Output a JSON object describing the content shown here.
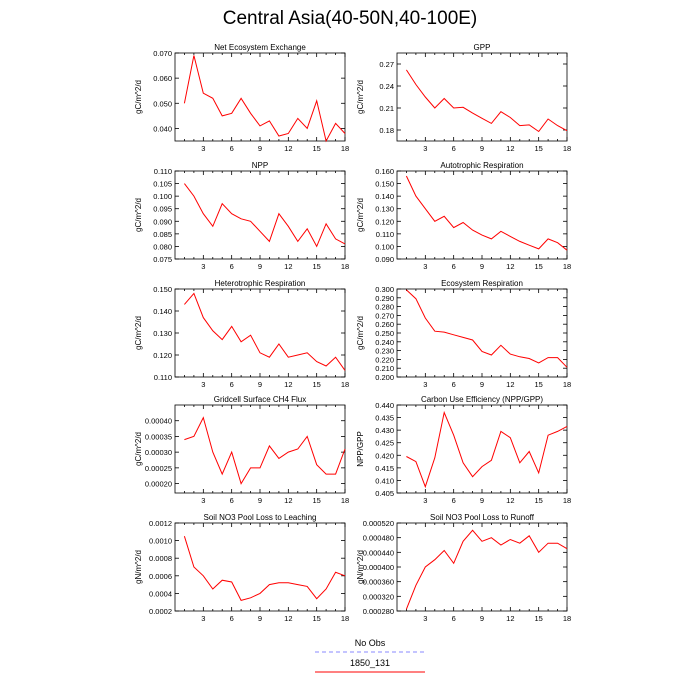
{
  "title": "Central Asia(40-50N,40-100E)",
  "legend": {
    "no_obs": "No Obs",
    "run": "1850_131",
    "no_obs_color": "#8a8aff",
    "run_color": "#ff0000"
  },
  "chart_data": [
    {
      "type": "line",
      "title": "Net Ecosystem Exchange",
      "ylabel": "gC/m^2/d",
      "xlim": [
        0,
        18
      ],
      "ylim": [
        0.035,
        0.07
      ],
      "yticks": [
        "0.040",
        "0.050",
        "0.060",
        "0.070"
      ],
      "ytick_values": [
        0.04,
        0.05,
        0.06,
        0.07
      ],
      "xticks": [
        "3",
        "6",
        "9",
        "12",
        "15",
        "18"
      ],
      "series": [
        {
          "x": [
            1,
            2,
            3,
            4,
            5,
            6,
            7,
            8,
            9,
            10,
            11,
            12,
            13,
            14,
            15,
            16,
            17,
            18
          ],
          "values": [
            0.05,
            0.069,
            0.054,
            0.052,
            0.045,
            0.046,
            0.052,
            0.046,
            0.041,
            0.043,
            0.037,
            0.038,
            0.044,
            0.04,
            0.051,
            0.035,
            0.042,
            0.038
          ]
        }
      ]
    },
    {
      "type": "line",
      "title": "GPP",
      "ylabel": "gC/m^2/d",
      "xlim": [
        0,
        18
      ],
      "ylim": [
        0.165,
        0.285
      ],
      "yticks": [
        "0.18",
        "0.21",
        "0.24",
        "0.27"
      ],
      "ytick_values": [
        0.18,
        0.21,
        0.24,
        0.27
      ],
      "xticks": [
        "3",
        "6",
        "9",
        "12",
        "15",
        "18"
      ],
      "series": [
        {
          "x": [
            1,
            2,
            3,
            4,
            5,
            6,
            7,
            8,
            9,
            10,
            11,
            12,
            13,
            14,
            15,
            16,
            17,
            18
          ],
          "values": [
            0.262,
            0.242,
            0.225,
            0.21,
            0.223,
            0.21,
            0.211,
            0.203,
            0.196,
            0.189,
            0.205,
            0.197,
            0.186,
            0.187,
            0.178,
            0.195,
            0.186,
            0.179
          ]
        }
      ]
    },
    {
      "type": "line",
      "title": "NPP",
      "ylabel": "gC/m^2/d",
      "xlim": [
        0,
        18
      ],
      "ylim": [
        0.075,
        0.11
      ],
      "yticks": [
        "0.075",
        "0.080",
        "0.085",
        "0.090",
        "0.095",
        "0.100",
        "0.105",
        "0.110"
      ],
      "ytick_values": [
        0.075,
        0.08,
        0.085,
        0.09,
        0.095,
        0.1,
        0.105,
        0.11
      ],
      "xticks": [
        "3",
        "6",
        "9",
        "12",
        "15",
        "18"
      ],
      "series": [
        {
          "x": [
            1,
            2,
            3,
            4,
            5,
            6,
            7,
            8,
            9,
            10,
            11,
            12,
            13,
            14,
            15,
            16,
            17,
            18
          ],
          "values": [
            0.105,
            0.1,
            0.093,
            0.088,
            0.097,
            0.093,
            0.091,
            0.09,
            0.086,
            0.082,
            0.093,
            0.088,
            0.082,
            0.087,
            0.08,
            0.089,
            0.083,
            0.081
          ]
        }
      ]
    },
    {
      "type": "line",
      "title": "Autotrophic Respiration",
      "ylabel": "gC/m^2/d",
      "xlim": [
        0,
        18
      ],
      "ylim": [
        0.09,
        0.16
      ],
      "yticks": [
        "0.090",
        "0.100",
        "0.110",
        "0.120",
        "0.130",
        "0.140",
        "0.150",
        "0.160"
      ],
      "ytick_values": [
        0.09,
        0.1,
        0.11,
        0.12,
        0.13,
        0.14,
        0.15,
        0.16
      ],
      "xticks": [
        "3",
        "6",
        "9",
        "12",
        "15",
        "18"
      ],
      "series": [
        {
          "x": [
            1,
            2,
            3,
            4,
            5,
            6,
            7,
            8,
            9,
            10,
            11,
            12,
            13,
            14,
            15,
            16,
            17,
            18
          ],
          "values": [
            0.156,
            0.14,
            0.13,
            0.12,
            0.124,
            0.115,
            0.119,
            0.113,
            0.109,
            0.106,
            0.112,
            0.108,
            0.104,
            0.101,
            0.098,
            0.106,
            0.103,
            0.097
          ]
        }
      ]
    },
    {
      "type": "line",
      "title": "Heterotrophic Respiration",
      "ylabel": "gC/m^2/d",
      "xlim": [
        0,
        18
      ],
      "ylim": [
        0.11,
        0.15
      ],
      "yticks": [
        "0.110",
        "0.120",
        "0.130",
        "0.140",
        "0.150"
      ],
      "ytick_values": [
        0.11,
        0.12,
        0.13,
        0.14,
        0.15
      ],
      "xticks": [
        "3",
        "6",
        "9",
        "12",
        "15",
        "18"
      ],
      "series": [
        {
          "x": [
            1,
            2,
            3,
            4,
            5,
            6,
            7,
            8,
            9,
            10,
            11,
            12,
            13,
            14,
            15,
            16,
            17,
            18
          ],
          "values": [
            0.143,
            0.148,
            0.137,
            0.131,
            0.127,
            0.133,
            0.126,
            0.129,
            0.121,
            0.119,
            0.125,
            0.119,
            0.12,
            0.121,
            0.117,
            0.115,
            0.119,
            0.113
          ]
        }
      ]
    },
    {
      "type": "line",
      "title": "Ecosystem Respiration",
      "ylabel": "gC/m^2/d",
      "xlim": [
        0,
        18
      ],
      "ylim": [
        0.2,
        0.3
      ],
      "yticks": [
        "0.200",
        "0.210",
        "0.220",
        "0.230",
        "0.240",
        "0.250",
        "0.260",
        "0.270",
        "0.280",
        "0.290",
        "0.300"
      ],
      "ytick_values": [
        0.2,
        0.21,
        0.22,
        0.23,
        0.24,
        0.25,
        0.26,
        0.27,
        0.28,
        0.29,
        0.3
      ],
      "xticks": [
        "3",
        "6",
        "9",
        "12",
        "15",
        "18"
      ],
      "series": [
        {
          "x": [
            1,
            2,
            3,
            4,
            5,
            6,
            7,
            8,
            9,
            10,
            11,
            12,
            13,
            14,
            15,
            16,
            17,
            18
          ],
          "values": [
            0.299,
            0.289,
            0.267,
            0.252,
            0.251,
            0.248,
            0.245,
            0.242,
            0.229,
            0.225,
            0.236,
            0.226,
            0.223,
            0.221,
            0.216,
            0.222,
            0.222,
            0.211
          ]
        }
      ]
    },
    {
      "type": "line",
      "title": "Gridcell Surface CH4 Flux",
      "ylabel": "gC/m^2/d",
      "xlim": [
        0,
        18
      ],
      "ylim": [
        0.00017,
        0.00045
      ],
      "yticks": [
        "0.00020",
        "0.00025",
        "0.00030",
        "0.00035",
        "0.00040"
      ],
      "ytick_values": [
        0.0002,
        0.00025,
        0.0003,
        0.00035,
        0.0004
      ],
      "xticks": [
        "3",
        "6",
        "9",
        "12",
        "15",
        "18"
      ],
      "series": [
        {
          "x": [
            1,
            2,
            3,
            4,
            5,
            6,
            7,
            8,
            9,
            10,
            11,
            12,
            13,
            14,
            15,
            16,
            17,
            18
          ],
          "values": [
            0.00034,
            0.00035,
            0.00041,
            0.0003,
            0.00023,
            0.0003,
            0.0002,
            0.00025,
            0.00025,
            0.00032,
            0.00028,
            0.0003,
            0.00031,
            0.00035,
            0.00026,
            0.00023,
            0.00023,
            0.00031
          ]
        }
      ]
    },
    {
      "type": "line",
      "title": "Carbon Use Efficiency (NPP/GPP)",
      "ylabel": "NPP/GPP",
      "xlim": [
        0,
        18
      ],
      "ylim": [
        0.405,
        0.44
      ],
      "yticks": [
        "0.405",
        "0.410",
        "0.415",
        "0.420",
        "0.425",
        "0.430",
        "0.435",
        "0.440"
      ],
      "ytick_values": [
        0.405,
        0.41,
        0.415,
        0.42,
        0.425,
        0.43,
        0.435,
        0.44
      ],
      "xticks": [
        "3",
        "6",
        "9",
        "12",
        "15",
        "18"
      ],
      "series": [
        {
          "x": [
            1,
            2,
            3,
            4,
            5,
            6,
            7,
            8,
            9,
            10,
            11,
            12,
            13,
            14,
            15,
            16,
            17,
            18
          ],
          "values": [
            0.4195,
            0.4175,
            0.4075,
            0.419,
            0.437,
            0.428,
            0.417,
            0.4115,
            0.4155,
            0.418,
            0.4295,
            0.427,
            0.417,
            0.4215,
            0.413,
            0.428,
            0.4295,
            0.4315
          ]
        }
      ]
    },
    {
      "type": "line",
      "title": "Soil NO3 Pool Loss to Leaching",
      "ylabel": "gN/m^2/d",
      "xlim": [
        0,
        18
      ],
      "ylim": [
        0.0002,
        0.0012
      ],
      "yticks": [
        "0.0002",
        "0.0004",
        "0.0006",
        "0.0008",
        "0.0010",
        "0.0012"
      ],
      "ytick_values": [
        0.0002,
        0.0004,
        0.0006,
        0.0008,
        0.001,
        0.0012
      ],
      "xticks": [
        "3",
        "6",
        "9",
        "12",
        "15",
        "18"
      ],
      "series": [
        {
          "x": [
            1,
            2,
            3,
            4,
            5,
            6,
            7,
            8,
            9,
            10,
            11,
            12,
            13,
            14,
            15,
            16,
            17,
            18
          ],
          "values": [
            0.00105,
            0.0007,
            0.0006,
            0.00045,
            0.00055,
            0.00053,
            0.00032,
            0.00035,
            0.0004,
            0.0005,
            0.00052,
            0.00052,
            0.0005,
            0.00048,
            0.00034,
            0.00045,
            0.00064,
            0.0006
          ]
        }
      ]
    },
    {
      "type": "line",
      "title": "Soil NO3 Pool Loss to Runoff",
      "ylabel": "gN/m^2/d",
      "xlim": [
        0,
        18
      ],
      "ylim": [
        0.00028,
        0.00052
      ],
      "yticks": [
        "0.000280",
        "0.000320",
        "0.000360",
        "0.000400",
        "0.000440",
        "0.000480",
        "0.000520"
      ],
      "ytick_values": [
        0.00028,
        0.00032,
        0.00036,
        0.0004,
        0.00044,
        0.00048,
        0.00052
      ],
      "xticks": [
        "3",
        "6",
        "9",
        "12",
        "15",
        "18"
      ],
      "series": [
        {
          "x": [
            1,
            2,
            3,
            4,
            5,
            6,
            7,
            8,
            9,
            10,
            11,
            12,
            13,
            14,
            15,
            16,
            17,
            18
          ],
          "values": [
            0.000285,
            0.00035,
            0.0004,
            0.00042,
            0.000445,
            0.00041,
            0.00047,
            0.0005,
            0.00047,
            0.00048,
            0.00046,
            0.000475,
            0.000465,
            0.000485,
            0.00044,
            0.000465,
            0.000465,
            0.00045
          ]
        }
      ]
    }
  ]
}
